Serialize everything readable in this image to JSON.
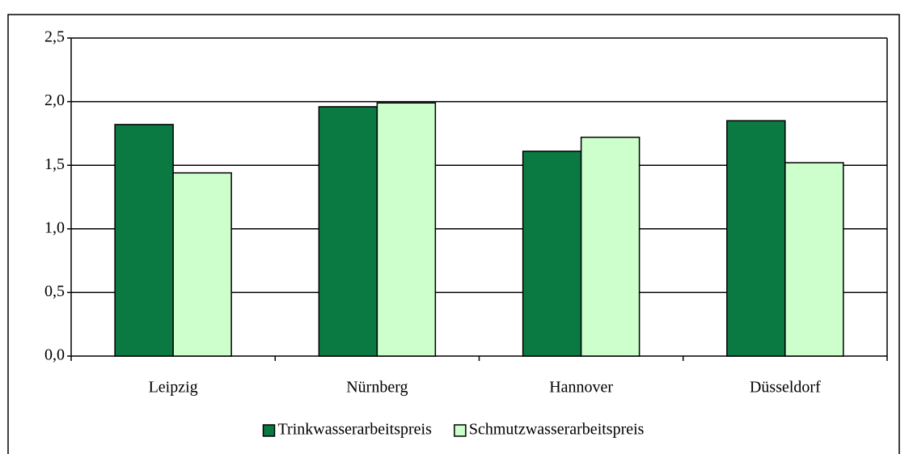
{
  "chart_data": {
    "type": "bar",
    "categories": [
      "Leipzig",
      "Nürnberg",
      "Hannover",
      "Düsseldorf"
    ],
    "series": [
      {
        "name": "Trinkwasserarbeitspreis",
        "color": "#0b7a42",
        "values": [
          1.82,
          1.96,
          1.61,
          1.85
        ]
      },
      {
        "name": "Schmutzwasserarbeitspreis",
        "color": "#ccffcc",
        "values": [
          1.44,
          1.99,
          1.72,
          1.52
        ]
      }
    ],
    "ylim": [
      0,
      2.5
    ],
    "yticks": [
      {
        "value": 0,
        "label": "0,0"
      },
      {
        "value": 0.5,
        "label": "0,5"
      },
      {
        "value": 1,
        "label": "1,0"
      },
      {
        "value": 1.5,
        "label": "1,5"
      },
      {
        "value": 2,
        "label": "2,0"
      },
      {
        "value": 2.5,
        "label": "2,5"
      }
    ],
    "grid": true,
    "legend": "bottom"
  }
}
